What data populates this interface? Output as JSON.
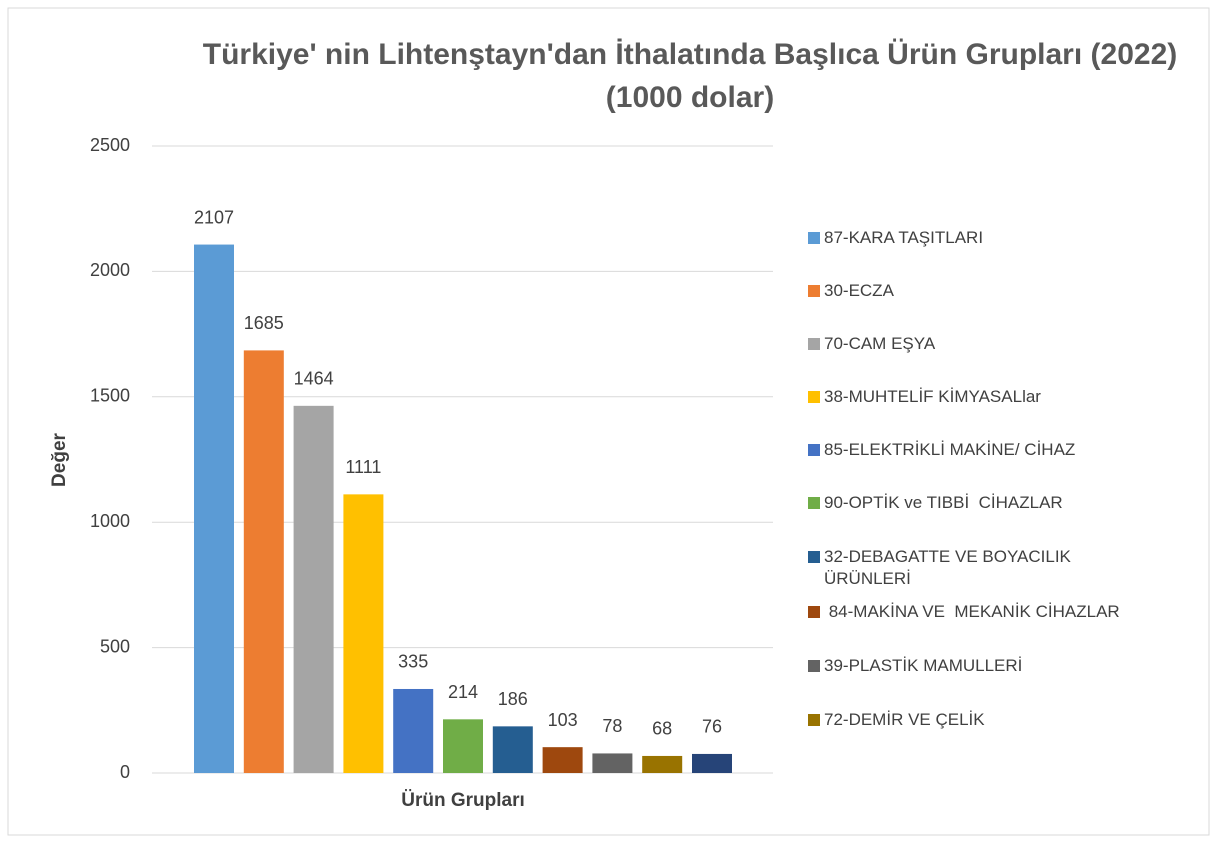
{
  "chart_data": {
    "type": "bar",
    "title": "Türkiye' nin Lihtenştayn'dan İthalatında Başlıca Ürün Grupları (2022) (1000 dolar)",
    "x_label": "Ürün Grupları",
    "y_label": "Değer",
    "categories": [
      "87-KARA TAŞITLARI",
      "30-ECZA",
      "70-CAM EŞYA",
      "38-MUHTELİF KİMYASALlar",
      "85-ELEKTRİKLİ MAKİNE/ CİHAZ",
      "90-OPTİK ve TIBBİ  CİHAZLAR",
      "32-DEBAGATTE VE BOYACILIK ÜRÜNLERİ",
      " 84-MAKİNA VE  MEKANİK CİHAZLAR",
      "39-PLASTİK MAMULLERİ",
      "72-DEMİR VE ÇELİK",
      null
    ],
    "values": [
      2107,
      1685,
      1464,
      1111,
      335,
      214,
      186,
      103,
      78,
      68,
      76
    ],
    "colors": [
      "#5b9bd5",
      "#ed7d31",
      "#a5a5a5",
      "#ffc000",
      "#4472c4",
      "#70ad47",
      "#255e91",
      "#9e480e",
      "#636363",
      "#997300",
      "#264478"
    ],
    "ylim": [
      0,
      2500
    ],
    "yticks": [
      0,
      500,
      1000,
      1500,
      2000,
      2500
    ],
    "grid": true,
    "legend": "right"
  }
}
